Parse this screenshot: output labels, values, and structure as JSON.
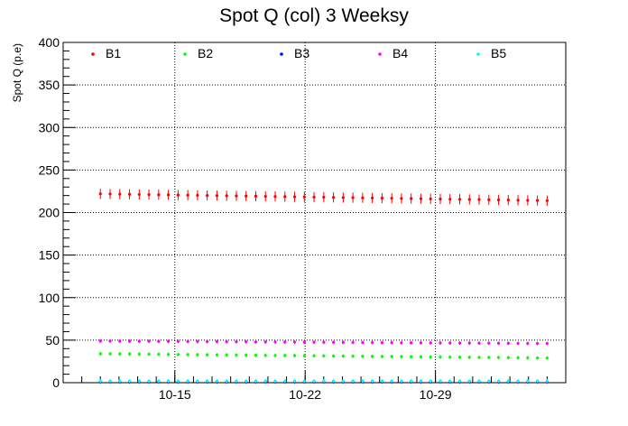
{
  "chart_data": {
    "type": "scatter",
    "title": "Spot Q (col)  3 Weeksy",
    "xlabel": "",
    "ylabel": "Spot Q (p.e)",
    "ylim": [
      0,
      400
    ],
    "xlim": [
      "2024-10-09",
      "2024-11-05"
    ],
    "y_ticks": [
      "0",
      "50",
      "100",
      "150",
      "200",
      "250",
      "300",
      "350",
      "400"
    ],
    "x_ticks": [
      {
        "date": "2024-10-15",
        "label": "10-15"
      },
      {
        "date": "2024-10-22",
        "label": "10-22"
      },
      {
        "date": "2024-10-29",
        "label": "10-29"
      }
    ],
    "grid": true,
    "legend_position": "top",
    "series": [
      {
        "name": "B1",
        "color": "#ff0000",
        "start": 222,
        "end": 214,
        "error": 6
      },
      {
        "name": "B2",
        "color": "#00ff00",
        "start": 34,
        "end": 29,
        "error": 1.5
      },
      {
        "name": "B3",
        "color": "#0000ff",
        "start": 1,
        "end": 1,
        "error": 0.5
      },
      {
        "name": "B4",
        "color": "#ff00ff",
        "start": 49,
        "end": 46,
        "error": 1.5
      },
      {
        "name": "B5",
        "color": "#00ffff",
        "start": 2,
        "end": 2,
        "error": 0.5
      }
    ],
    "x_start": "2024-10-11",
    "x_end": "2024-11-04",
    "points_per_series": 47
  }
}
